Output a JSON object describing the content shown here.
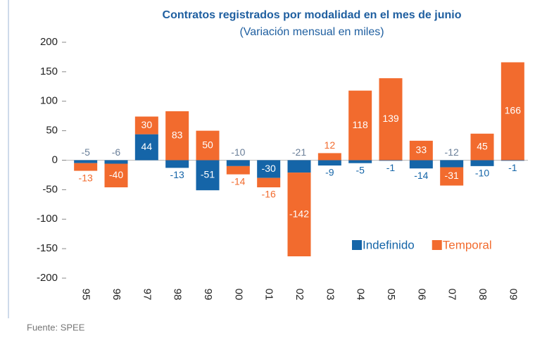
{
  "chart_data": {
    "type": "bar",
    "stacked": true,
    "title": "Contratos registrados por modalidad en el mes de junio",
    "subtitle": "(Variación mensual en miles)",
    "categories": [
      "95",
      "96",
      "97",
      "98",
      "99",
      "00",
      "01",
      "02",
      "03",
      "04",
      "05",
      "06",
      "07",
      "08",
      "09"
    ],
    "series": [
      {
        "name": "Indefinido",
        "color": "#1565a8",
        "values": [
          -5,
          -6,
          44,
          -13,
          -51,
          -10,
          -30,
          -21,
          -9,
          -5,
          -1,
          -14,
          -12,
          -10,
          -1
        ]
      },
      {
        "name": "Temporal",
        "color": "#f26b2e",
        "values": [
          -13,
          -40,
          30,
          83,
          50,
          -14,
          -16,
          -142,
          12,
          118,
          139,
          33,
          -31,
          45,
          166
        ]
      }
    ],
    "ylim": [
      -200,
      200
    ],
    "yticks": [
      -200,
      -150,
      -100,
      -50,
      0,
      50,
      100,
      150,
      200
    ],
    "legend": "lower right",
    "source": "Fuente: SPEE"
  }
}
